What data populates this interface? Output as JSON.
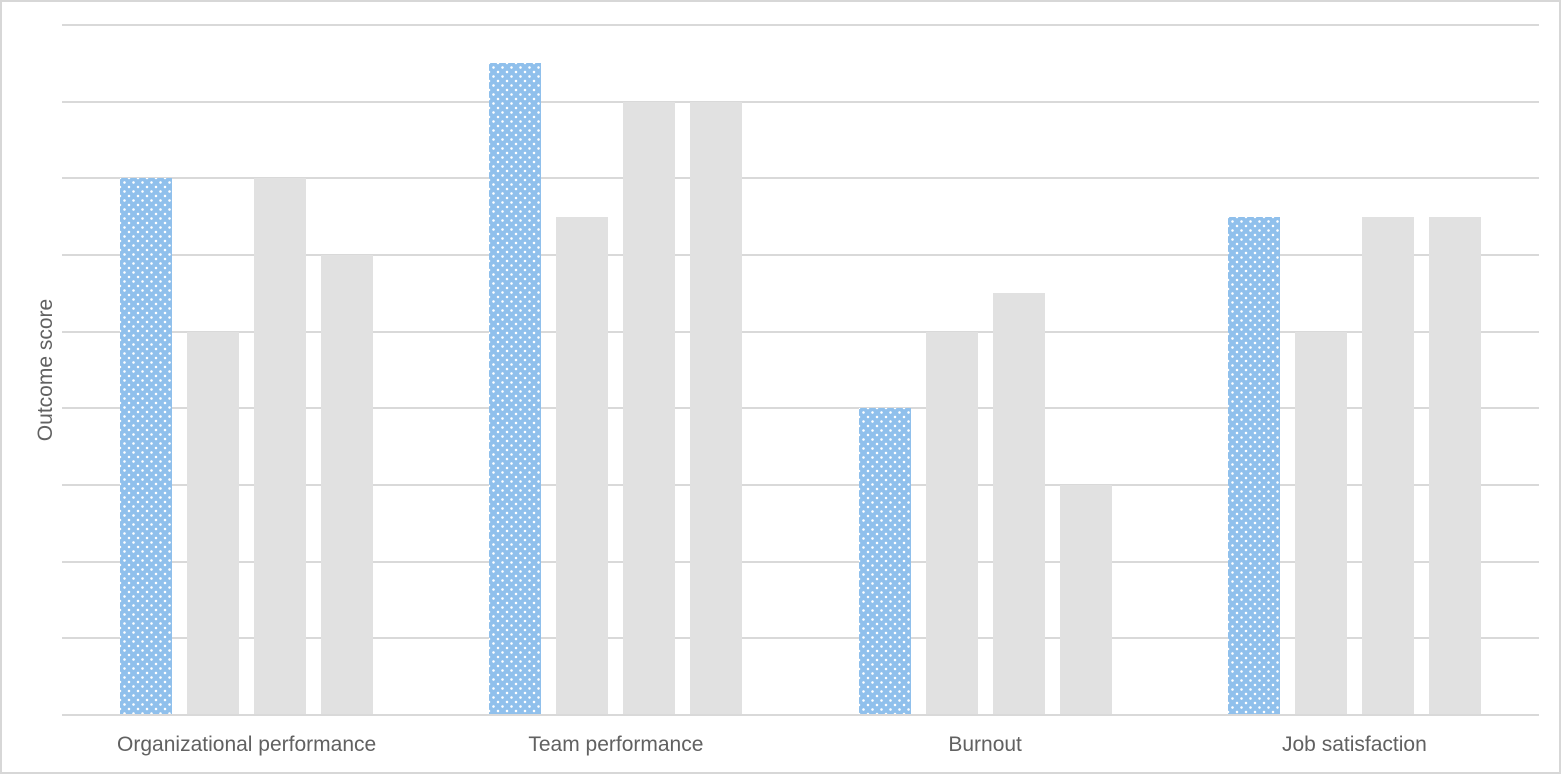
{
  "page": {
    "background": "#ffffff",
    "border_color": "#d7d7d7"
  },
  "colors": {
    "highlight_bar_fill": "#90c0ec",
    "highlight_bar_dots": "#ffffff",
    "default_bar_fill": "#e1e1e1",
    "gridline": "#d9d9d9",
    "axis_text": "#616161"
  },
  "chart_data": {
    "type": "bar",
    "title": "",
    "xlabel": "",
    "ylabel": "Outcome score",
    "ylim": [
      0,
      4.5
    ],
    "gridline_step": 0.5,
    "grid": true,
    "legend_position": "none",
    "y_tick_labels_visible": false,
    "categories": [
      "Organizational performance",
      "Team performance",
      "Burnout",
      "Job satisfaction"
    ],
    "series": [
      {
        "name": "series-1-highlighted",
        "style": "blue-dotted",
        "values": [
          3.5,
          4.25,
          2.0,
          3.25
        ]
      },
      {
        "name": "series-2",
        "style": "gray",
        "values": [
          2.5,
          3.25,
          2.5,
          2.5
        ]
      },
      {
        "name": "series-3",
        "style": "gray",
        "values": [
          3.5,
          4.0,
          2.75,
          3.25
        ]
      },
      {
        "name": "series-4",
        "style": "gray",
        "values": [
          3.0,
          4.0,
          1.5,
          3.25
        ]
      }
    ]
  }
}
